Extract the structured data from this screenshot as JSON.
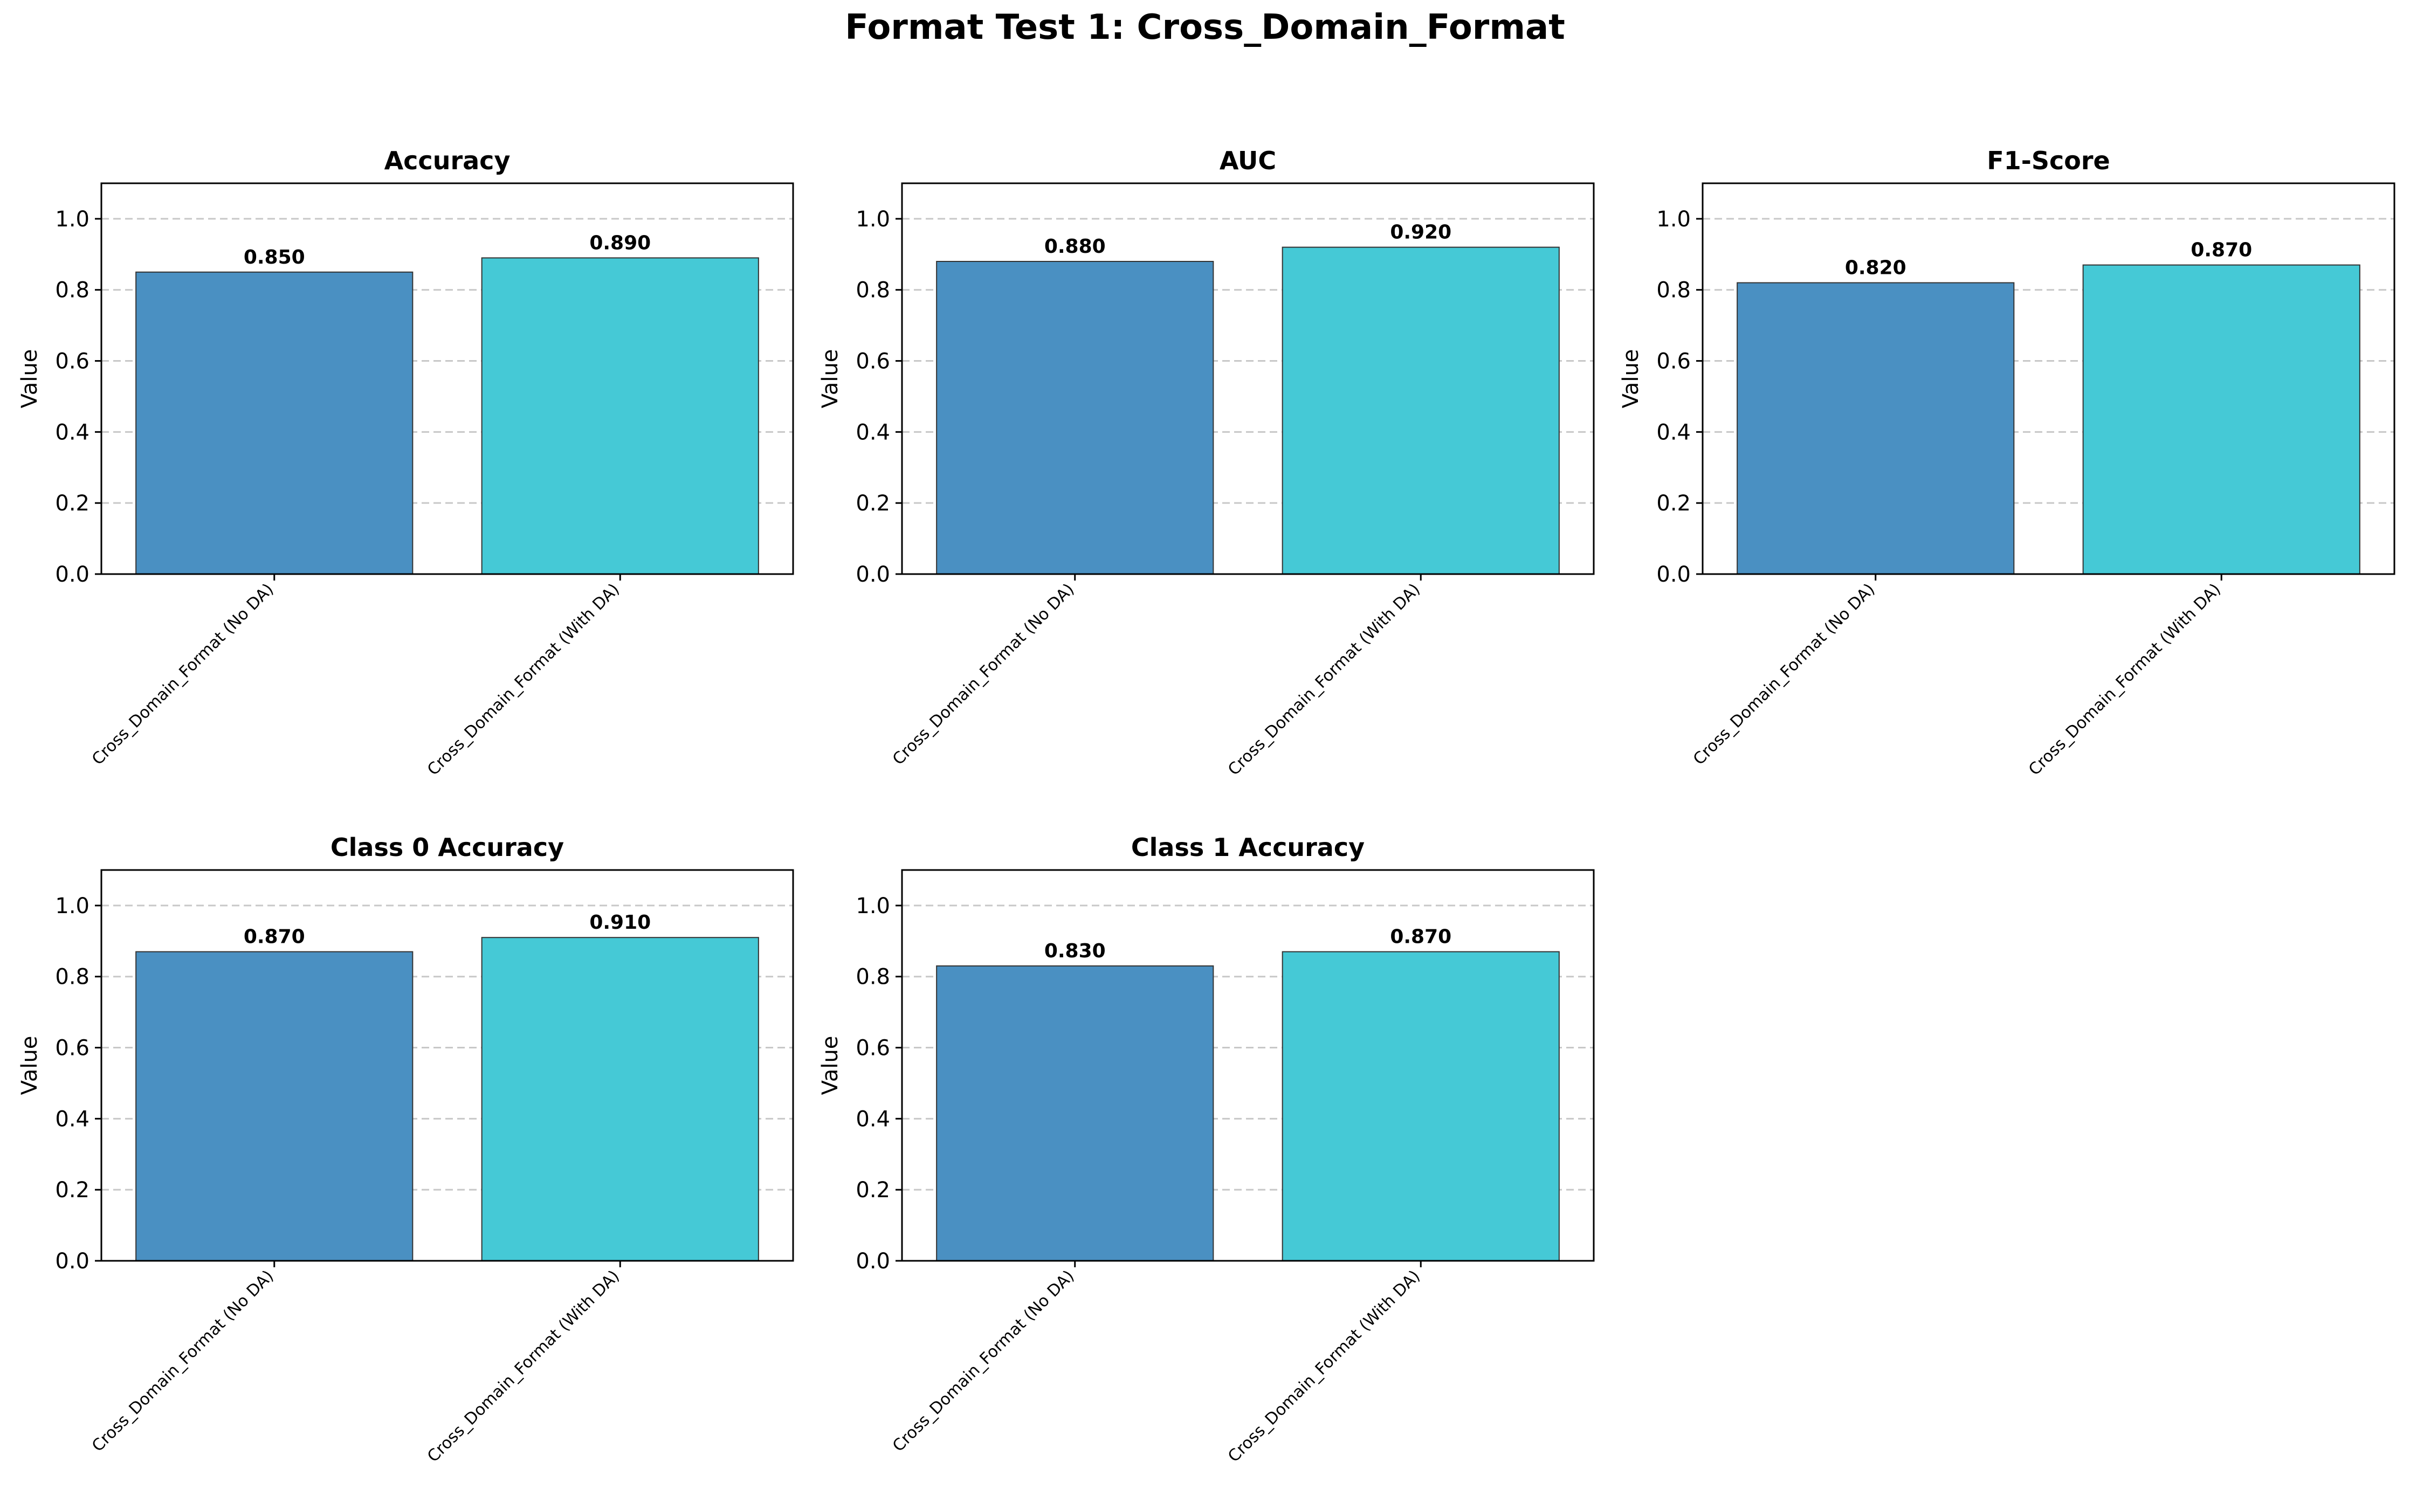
{
  "title": "Format Test 1: Cross_Domain_Format",
  "colors": {
    "no_da": "#4a90c2",
    "with_da": "#45c9d6",
    "edge": "#333333",
    "grid": "#c8c8c8"
  },
  "chart_data": [
    {
      "type": "bar",
      "title": "Accuracy",
      "ylabel": "Value",
      "ylim": [
        0,
        1.1
      ],
      "yticks": [
        "0.0",
        "0.2",
        "0.4",
        "0.6",
        "0.8",
        "1.0"
      ],
      "grid": "y-dashed",
      "categories": [
        "Cross_Domain_Format (No DA)",
        "Cross_Domain_Format (With DA)"
      ],
      "values": [
        0.85,
        0.89
      ],
      "value_labels": [
        "0.850",
        "0.890"
      ]
    },
    {
      "type": "bar",
      "title": "AUC",
      "ylabel": "Value",
      "ylim": [
        0,
        1.1
      ],
      "yticks": [
        "0.0",
        "0.2",
        "0.4",
        "0.6",
        "0.8",
        "1.0"
      ],
      "grid": "y-dashed",
      "categories": [
        "Cross_Domain_Format (No DA)",
        "Cross_Domain_Format (With DA)"
      ],
      "values": [
        0.88,
        0.92
      ],
      "value_labels": [
        "0.880",
        "0.920"
      ]
    },
    {
      "type": "bar",
      "title": "F1-Score",
      "ylabel": "Value",
      "ylim": [
        0,
        1.1
      ],
      "yticks": [
        "0.0",
        "0.2",
        "0.4",
        "0.6",
        "0.8",
        "1.0"
      ],
      "grid": "y-dashed",
      "categories": [
        "Cross_Domain_Format (No DA)",
        "Cross_Domain_Format (With DA)"
      ],
      "values": [
        0.82,
        0.87
      ],
      "value_labels": [
        "0.820",
        "0.870"
      ]
    },
    {
      "type": "bar",
      "title": "Class 0 Accuracy",
      "ylabel": "Value",
      "ylim": [
        0,
        1.1
      ],
      "yticks": [
        "0.0",
        "0.2",
        "0.4",
        "0.6",
        "0.8",
        "1.0"
      ],
      "grid": "y-dashed",
      "categories": [
        "Cross_Domain_Format (No DA)",
        "Cross_Domain_Format (With DA)"
      ],
      "values": [
        0.87,
        0.91
      ],
      "value_labels": [
        "0.870",
        "0.910"
      ]
    },
    {
      "type": "bar",
      "title": "Class 1 Accuracy",
      "ylabel": "Value",
      "ylim": [
        0,
        1.1
      ],
      "yticks": [
        "0.0",
        "0.2",
        "0.4",
        "0.6",
        "0.8",
        "1.0"
      ],
      "grid": "y-dashed",
      "categories": [
        "Cross_Domain_Format (No DA)",
        "Cross_Domain_Format (With DA)"
      ],
      "values": [
        0.83,
        0.87
      ],
      "value_labels": [
        "0.830",
        "0.870"
      ]
    }
  ]
}
